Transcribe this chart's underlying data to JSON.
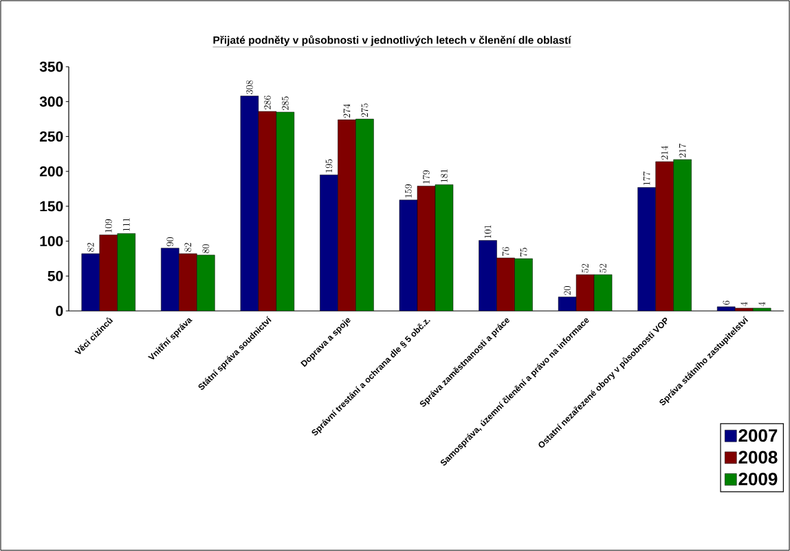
{
  "chart_data": {
    "type": "bar",
    "title": "Přijaté podněty v působnosti v jednotlivých letech v členění dle oblastí",
    "categories": [
      "Věci cizinců",
      "Vnitřní správa",
      "Státní správa soudnictví",
      "Doprava a spoje",
      "Správní trestání a ochrana dle § 5 obč.z.",
      "Správa zaměstnanosti a práce",
      "Samospráva, územní členění a právo na informace",
      "Ostatní nezařezené obory v působnosti VOP",
      "Správa státního zastupitelství"
    ],
    "series": [
      {
        "name": "2007",
        "color": "#000080",
        "values": [
          82,
          90,
          308,
          195,
          159,
          101,
          20,
          177,
          6
        ]
      },
      {
        "name": "2008",
        "color": "#800000",
        "values": [
          109,
          82,
          286,
          274,
          179,
          76,
          52,
          214,
          4
        ]
      },
      {
        "name": "2009",
        "color": "#008000",
        "values": [
          111,
          80,
          285,
          275,
          181,
          75,
          52,
          217,
          4
        ]
      }
    ],
    "ylim": [
      0,
      350
    ],
    "yticks": [
      0,
      50,
      100,
      150,
      200,
      250,
      300,
      350
    ],
    "data_labels": true,
    "legend": "bottom right",
    "grid": false
  }
}
